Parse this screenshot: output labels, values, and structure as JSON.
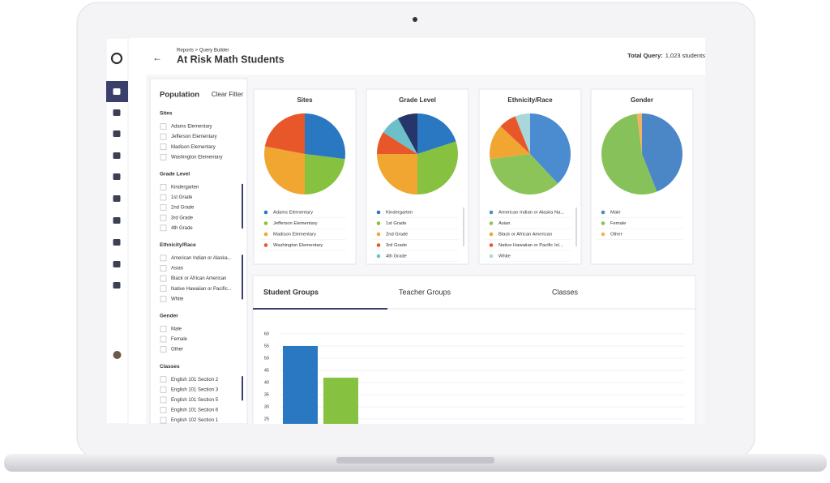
{
  "header": {
    "breadcrumb": "Reports > Query Builder",
    "title": "At Risk Math Students",
    "total_label": "Total Query:",
    "total_value": "1,023 students"
  },
  "filters": {
    "title": "Population",
    "clear": "Clear Filter",
    "sections": [
      {
        "title": "Sites",
        "items": [
          "Adams Elementary",
          "Jefferson Elementary",
          "Madison Elementary",
          "Washington Elementary"
        ]
      },
      {
        "title": "Grade Level",
        "items": [
          "Kindergarten",
          "1st Grade",
          "2nd Grade",
          "3rd Grade",
          "4th Grade"
        ]
      },
      {
        "title": "Ethnicity/Race",
        "items": [
          "American Indian or Alaska...",
          "Asian",
          "Black or African American",
          "Native Hawaiian or Pacific...",
          "White"
        ]
      },
      {
        "title": "Gender",
        "items": [
          "Male",
          "Female",
          "Other"
        ]
      },
      {
        "title": "Classes",
        "items": [
          "English 101 Section 2",
          "English 101 Section 3",
          "English 101 Section 5",
          "English 101 Section 6",
          "English 102 Section 1"
        ]
      }
    ]
  },
  "chart_data": [
    {
      "type": "pie",
      "title": "Sites",
      "categories": [
        "Adams Elementary",
        "Jefferson Elementary",
        "Madison Elementary",
        "Washington Elementary"
      ],
      "values": [
        27,
        23,
        28,
        22
      ],
      "colors": [
        "#2a78c2",
        "#86c13f",
        "#f0a631",
        "#e8572a"
      ]
    },
    {
      "type": "pie",
      "title": "Grade Level",
      "categories": [
        "Kindergarten",
        "1st Grade",
        "2nd Grade",
        "3rd Grade",
        "4th Grade",
        null
      ],
      "values": [
        20,
        30,
        25,
        9,
        8,
        8
      ],
      "colors": [
        "#2a78c2",
        "#86c13f",
        "#f0a631",
        "#e8572a",
        "#6cc0c9",
        "#26366a"
      ]
    },
    {
      "type": "pie",
      "title": "Ethnicity/Race",
      "categories": [
        "American Indian or Alaska Na...",
        "Asian",
        "Black or African American",
        "Native Hawaiian or Pacific Isl...",
        "White"
      ],
      "values": [
        38,
        35,
        14,
        7,
        6
      ],
      "colors": [
        "#4b8cd0",
        "#8cc459",
        "#f0a631",
        "#e8572a",
        "#a9d7dc"
      ]
    },
    {
      "type": "pie",
      "title": "Gender",
      "categories": [
        "Male",
        "Female",
        "Other"
      ],
      "values": [
        44,
        54,
        2
      ],
      "colors": [
        "#4b86c7",
        "#86c259",
        "#f5b060"
      ]
    },
    {
      "type": "bar",
      "categories": [
        null,
        null
      ],
      "values": [
        55,
        42
      ],
      "colors": [
        "#2a78c2",
        "#86c13f"
      ],
      "ylim": [
        23,
        62
      ],
      "yticks": [
        25,
        30,
        35,
        40,
        45,
        50,
        55,
        60
      ],
      "grid": true
    }
  ],
  "tabs": [
    "Student Groups",
    "Teacher Groups",
    "Classes"
  ]
}
